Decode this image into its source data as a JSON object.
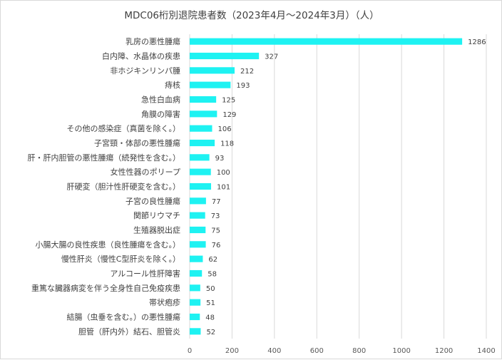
{
  "chart_data": {
    "type": "bar",
    "orientation": "horizontal",
    "title": "MDC06桁別退院患者数（2023年4月～2024年3月）（人）",
    "categories": [
      "乳房の悪性腫瘍",
      "白内障、水晶体の疾患",
      "非ホジキンリンパ腫",
      "痔核",
      "急性白血病",
      "角膜の障害",
      "その他の感染症（真菌を除く。）",
      "子宮頸・体部の悪性腫瘍",
      "肝・肝内胆管の悪性腫瘍（続発性を含む。）",
      "女性性器のポリープ",
      "肝硬変（胆汁性肝硬変を含む。）",
      "子宮の良性腫瘍",
      "関節リウマチ",
      "生殖器脱出症",
      "小腸大腸の良性疾患（良性腫瘍を含む。）",
      "慢性肝炎（慢性C型肝炎を除く。）",
      "アルコール性肝障害",
      "重篤な臓器病変を伴う全身性自己免疫疾患",
      "帯状疱疹",
      "結腸（虫垂を含む。）の悪性腫瘍",
      "胆管（肝内外）結石、胆管炎"
    ],
    "values": [
      1286,
      327,
      212,
      193,
      125,
      129,
      106,
      118,
      93,
      100,
      101,
      77,
      73,
      75,
      76,
      62,
      58,
      50,
      51,
      48,
      52
    ],
    "xlim": [
      0,
      1400
    ],
    "xticks": [
      0,
      200,
      400,
      600,
      800,
      1000,
      1200,
      1400
    ],
    "grid": "vertical",
    "legend": "none",
    "bar_color": "#1EF2F2",
    "grid_color": "#d9d9d9"
  }
}
